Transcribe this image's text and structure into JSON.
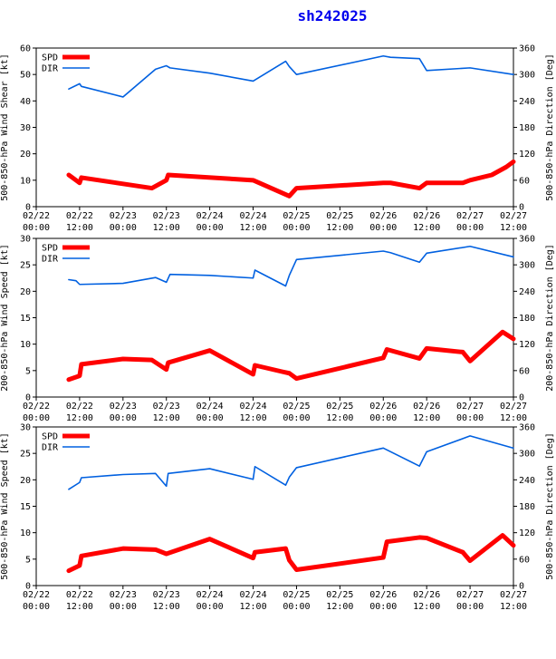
{
  "chart_data": {
    "title": "sh242025",
    "type": "line",
    "x_ticks": [
      "02/22\n00:00",
      "02/22\n12:00",
      "02/23\n00:00",
      "02/23\n12:00",
      "02/24\n00:00",
      "02/24\n12:00",
      "02/25\n00:00",
      "02/25\n12:00",
      "02/26\n00:00",
      "02/26\n12:00",
      "02/27\n00:00",
      "02/27\n12:00"
    ],
    "x_ticks_hours": [
      0,
      12,
      24,
      36,
      48,
      60,
      72,
      84,
      96,
      108,
      120,
      132
    ],
    "xlim_hours": [
      0,
      132
    ],
    "x_reference": "02/22 00:00",
    "panels": [
      {
        "ylabel_left": "500-850-hPa Wind Shear [kt]",
        "ylabel_right": "500-850-hPa Direction [Deg]",
        "ylim_left": [
          0,
          60
        ],
        "yticks_left": [
          0,
          10,
          20,
          30,
          40,
          50,
          60
        ],
        "ylim_right": [
          0,
          360
        ],
        "yticks_right": [
          0,
          60,
          120,
          180,
          240,
          300,
          360
        ],
        "legend": "top-left",
        "series": [
          {
            "name": "SPD",
            "color": "#ff0000",
            "axis": "left",
            "x": [
              9,
              10,
              12,
              12.5,
              32,
              36,
              36.5,
              60,
              70,
              72,
              96,
              98,
              106,
              108,
              118,
              120,
              126,
              130,
              132
            ],
            "values": [
              12,
              11,
              9,
              11,
              7,
              10,
              12,
              10,
              4,
              7,
              9,
              9,
              7,
              9,
              9,
              10,
              12,
              15,
              17
            ]
          },
          {
            "name": "DIR",
            "color": "#0060e0",
            "axis": "left",
            "x": [
              9,
              12,
              12.5,
              24,
              33,
              36,
              37,
              48,
              60,
              69,
              70,
              72,
              96,
              98,
              106,
              108,
              120,
              132
            ],
            "values": [
              44.5,
              46.5,
              45.5,
              41.5,
              52,
              53.3,
              52.5,
              50.5,
              47.5,
              55,
              53,
              50,
              57,
              56.5,
              56,
              51.5,
              52.5,
              50
            ]
          }
        ]
      },
      {
        "ylabel_left": "200-850-hPa Wind Speed [kt]",
        "ylabel_right": "200-850-hPa Direction [Deg]",
        "ylim_left": [
          0,
          30
        ],
        "yticks_left": [
          0,
          5,
          10,
          15,
          20,
          25,
          30
        ],
        "ylim_right": [
          0,
          360
        ],
        "yticks_right": [
          0,
          60,
          120,
          180,
          240,
          300,
          360
        ],
        "legend": "top-left",
        "series": [
          {
            "name": "SPD",
            "color": "#ff0000",
            "axis": "left",
            "x": [
              9,
              12,
              12.5,
              24,
              32,
              36,
              36.5,
              48,
              60,
              60.5,
              68,
              70,
              72,
              96,
              97,
              106,
              108,
              118,
              120,
              129,
              132
            ],
            "values": [
              3.3,
              4,
              6.2,
              7.2,
              7,
              5.2,
              6.5,
              8.8,
              4.3,
              6,
              4.8,
              4.5,
              3.5,
              7.4,
              9,
              7.3,
              9.2,
              8.5,
              6.8,
              12.3,
              11
            ]
          },
          {
            "name": "DIR",
            "color": "#0060e0",
            "axis": "left",
            "x": [
              9,
              11,
              12,
              24,
              33,
              36,
              37,
              48,
              60,
              60.5,
              69,
              70,
              72,
              96,
              98,
              106,
              108,
              120,
              132
            ],
            "values": [
              22.2,
              22,
              21.3,
              21.5,
              22.6,
              21.7,
              23.2,
              23,
              22.5,
              24,
              21,
              23,
              26,
              27.6,
              27.3,
              25.5,
              27.2,
              28.5,
              26.5
            ]
          }
        ]
      },
      {
        "ylabel_left": "500-850-hPa Wind Speed [kt]",
        "ylabel_right": "500-850-hPa Direction [Deg]",
        "ylim_left": [
          0,
          30
        ],
        "yticks_left": [
          0,
          5,
          10,
          15,
          20,
          25,
          30
        ],
        "ylim_right": [
          0,
          360
        ],
        "yticks_right": [
          0,
          60,
          120,
          180,
          240,
          300,
          360
        ],
        "legend": "top-left",
        "series": [
          {
            "name": "SPD",
            "color": "#ff0000",
            "axis": "left",
            "x": [
              9,
              12,
              12.5,
              24,
              33,
              36,
              48,
              60,
              60.5,
              69,
              70,
              72,
              96,
              97,
              106,
              108,
              118,
              120,
              129,
              132
            ],
            "values": [
              2.8,
              3.8,
              5.6,
              7,
              6.8,
              6,
              8.8,
              5.2,
              6.3,
              7,
              4.8,
              3,
              5.3,
              8.3,
              9.1,
              9,
              6.3,
              4.7,
              9.5,
              7.6
            ]
          },
          {
            "name": "DIR",
            "color": "#0060e0",
            "axis": "left",
            "x": [
              9,
              12,
              12.5,
              24,
              33,
              36,
              36.5,
              48,
              60,
              60.5,
              69,
              70,
              72,
              96,
              106,
              108,
              120,
              132
            ],
            "values": [
              18.2,
              19.5,
              20.4,
              21,
              21.2,
              18.8,
              21.2,
              22.1,
              20.1,
              22.5,
              19,
              20.5,
              22.3,
              26,
              22.6,
              25.3,
              28.3,
              26
            ]
          }
        ]
      }
    ]
  }
}
